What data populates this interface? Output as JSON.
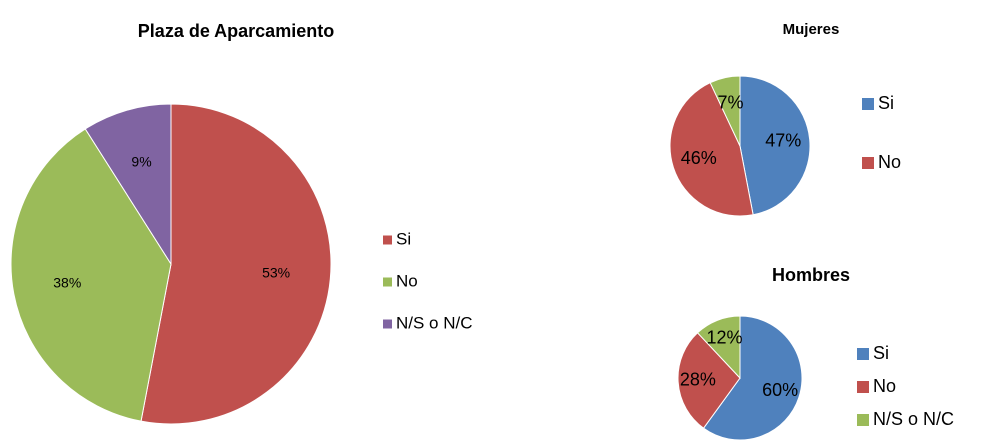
{
  "chart_data": [
    {
      "type": "pie",
      "title": "Plaza de Aparcamiento",
      "categories": [
        "Si",
        "No",
        "N/S o N/C"
      ],
      "values": [
        53,
        38,
        9
      ],
      "value_labels": [
        "53%",
        "38%",
        "9%"
      ],
      "colors": [
        "#c0504d",
        "#9bbb59",
        "#8064a2"
      ]
    },
    {
      "type": "pie",
      "title": "Mujeres",
      "categories": [
        "Si",
        "No",
        null
      ],
      "values": [
        47,
        46,
        7
      ],
      "value_labels": [
        "47%",
        "46%",
        "7%"
      ],
      "colors": [
        "#4f81bd",
        "#c0504d",
        "#9bbb59"
      ]
    },
    {
      "type": "pie",
      "title": "Hombres",
      "categories": [
        "Si",
        "No",
        "N/S o N/C"
      ],
      "values": [
        60,
        28,
        12
      ],
      "value_labels": [
        "60%",
        "28%",
        "12%"
      ],
      "colors": [
        "#4f81bd",
        "#c0504d",
        "#9bbb59"
      ]
    }
  ]
}
